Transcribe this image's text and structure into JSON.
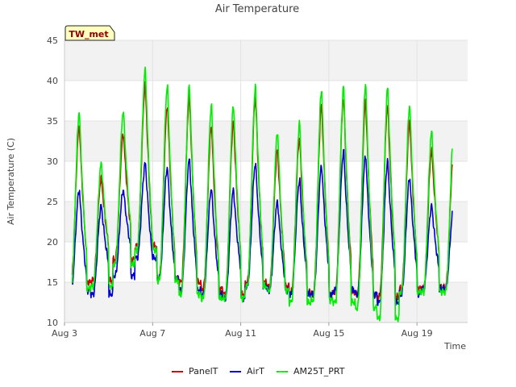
{
  "chart_data": {
    "type": "line",
    "title": "Air Temperature",
    "xlabel": "Time",
    "ylabel": "Air Temperature (C)",
    "site_badge": "TW_met",
    "ylim": [
      10,
      45
    ],
    "yticks": [
      10,
      15,
      20,
      25,
      30,
      35,
      40,
      45
    ],
    "xlim": [
      3,
      21.3
    ],
    "xticks": [
      {
        "value": 3,
        "label": "Aug 3"
      },
      {
        "value": 7,
        "label": "Aug 7"
      },
      {
        "value": 11,
        "label": "Aug 11"
      },
      {
        "value": 15,
        "label": "Aug 15"
      },
      {
        "value": 19,
        "label": "Aug 19"
      }
    ],
    "grid": true,
    "banded_background": true,
    "legend_position": "bottom-center",
    "series": [
      {
        "name": "PanelT",
        "color": "#cc0000",
        "daily_min": [
          15.0,
          15.2,
          17.8,
          19.5,
          15.5,
          15.0,
          14.2,
          13.5,
          15.0,
          14.5,
          13.8,
          13.5,
          13.8,
          13.5,
          13.2,
          14.2,
          14.3,
          16.2
        ],
        "daily_max": [
          34.5,
          28.0,
          33.5,
          39.5,
          37.0,
          38.0,
          34.5,
          35.0,
          38.0,
          31.5,
          33.0,
          37.0,
          38.0,
          37.5,
          37.0,
          35.0,
          31.5
        ]
      },
      {
        "name": "AirT",
        "color": "#0000cc",
        "daily_min": [
          14.0,
          13.5,
          15.8,
          18.0,
          15.5,
          14.0,
          13.5,
          13.0,
          14.5,
          14.0,
          13.5,
          13.5,
          14.0,
          13.5,
          12.5,
          13.5,
          14.2,
          15.0
        ],
        "daily_max": [
          26.5,
          24.5,
          26.5,
          29.8,
          29.3,
          30.3,
          26.7,
          26.5,
          29.8,
          25.0,
          27.7,
          29.5,
          31.3,
          30.8,
          30.0,
          28.0,
          24.5
        ]
      },
      {
        "name": "AM25T_PRT",
        "color": "#00ee00",
        "daily_min": [
          14.2,
          14.5,
          17.2,
          19.0,
          15.2,
          13.5,
          13.0,
          13.0,
          14.5,
          14.0,
          12.5,
          12.8,
          12.5,
          11.8,
          10.5,
          13.8,
          13.8,
          15.5
        ],
        "daily_max": [
          36.2,
          29.8,
          36.3,
          41.5,
          39.5,
          39.5,
          37.0,
          37.0,
          39.3,
          33.7,
          34.8,
          39.0,
          39.3,
          39.7,
          39.2,
          37.0,
          33.7
        ]
      }
    ]
  }
}
